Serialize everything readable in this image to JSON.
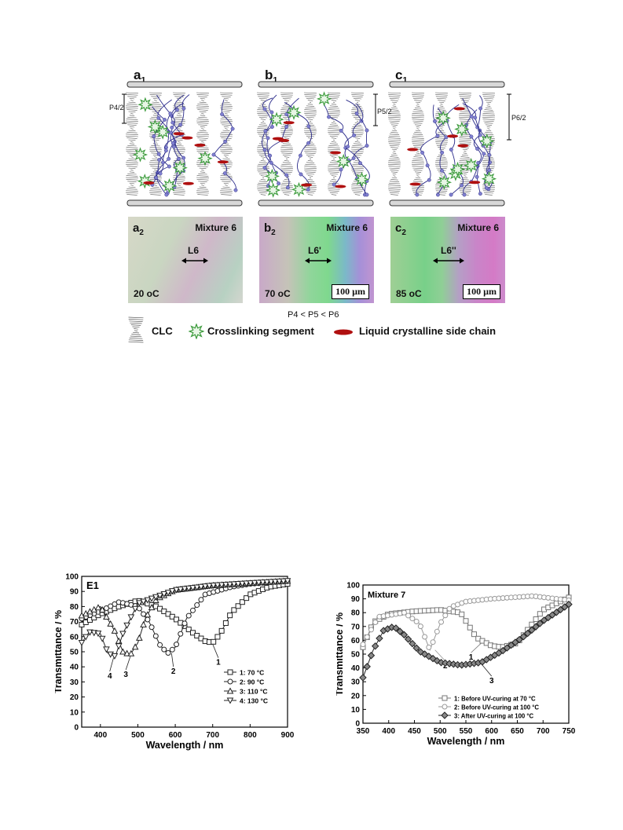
{
  "figure1": {
    "panels": [
      {
        "letter": "a",
        "sub": "1",
        "pitch": "P4/2"
      },
      {
        "letter": "b",
        "sub": "1",
        "pitch": "P5/2"
      },
      {
        "letter": "c",
        "sub": "1",
        "pitch": "P6/2"
      }
    ],
    "micrographs": [
      {
        "letter": "a",
        "sub": "2",
        "mixture": "Mixture 6",
        "period": "L6",
        "temp": "20 oC",
        "scale": ""
      },
      {
        "letter": "b",
        "sub": "2",
        "mixture": "Mixture 6",
        "period": "L6'",
        "temp": "70 oC",
        "scale": "100 µm"
      },
      {
        "letter": "c",
        "sub": "2",
        "mixture": "Mixture 6",
        "period": "L6''",
        "temp": "85 oC",
        "scale": "100 µm"
      }
    ],
    "pitch_relation": "P4 < P5 < P6",
    "legend": {
      "clc": "CLC",
      "crosslink": "Crosslinking segment",
      "sidechain": "Liquid crystalline side chain"
    },
    "colors": {
      "crosslink": "#3a9a3a",
      "sidechain": "#b01010",
      "chain": "#2b2b8a",
      "node": "#7f7fd0"
    }
  },
  "chart_data": [
    {
      "type": "line",
      "label": "E1",
      "xlabel": "Wavelength / nm",
      "ylabel": "Transmittance / %",
      "xlim": [
        350,
        900
      ],
      "ylim": [
        0,
        100
      ],
      "xticks": [
        400,
        500,
        600,
        700,
        800,
        900
      ],
      "yticks": [
        0,
        10,
        20,
        30,
        40,
        50,
        60,
        70,
        80,
        90,
        100
      ],
      "legend": "bottom-right",
      "series": [
        {
          "name": "1: 70 °C",
          "marker": "square",
          "callout": "1",
          "x": [
            350,
            400,
            450,
            500,
            550,
            600,
            650,
            680,
            700,
            720,
            750,
            800,
            850,
            900
          ],
          "y": [
            68,
            75,
            80,
            84,
            80,
            72,
            62,
            57,
            56,
            62,
            76,
            88,
            93,
            95
          ]
        },
        {
          "name": "2: 90 °C",
          "marker": "circle",
          "callout": "2",
          "x": [
            350,
            400,
            450,
            500,
            530,
            560,
            580,
            600,
            630,
            680,
            750,
            800,
            900
          ],
          "y": [
            72,
            77,
            83,
            80,
            70,
            54,
            49,
            53,
            72,
            88,
            93,
            95,
            97
          ]
        },
        {
          "name": "3: 110 °C",
          "marker": "triangle-up",
          "callout": "3",
          "x": [
            350,
            400,
            440,
            460,
            480,
            500,
            520,
            550,
            600,
            700,
            900
          ],
          "y": [
            74,
            80,
            63,
            50,
            48,
            56,
            72,
            85,
            91,
            94,
            97
          ]
        },
        {
          "name": "4: 130 °C",
          "marker": "triangle-down",
          "callout": "4",
          "x": [
            350,
            370,
            400,
            420,
            440,
            460,
            500,
            600,
            700,
            900
          ],
          "y": [
            56,
            63,
            62,
            49,
            47,
            62,
            82,
            91,
            94,
            97
          ]
        }
      ]
    },
    {
      "type": "line",
      "label": "Mixture 7",
      "xlabel": "Wavelength / nm",
      "ylabel": "Transmittance / %",
      "xlim": [
        350,
        750
      ],
      "ylim": [
        0,
        100
      ],
      "xticks": [
        350,
        400,
        450,
        500,
        550,
        600,
        650,
        700,
        750
      ],
      "yticks": [
        0,
        10,
        20,
        30,
        40,
        50,
        60,
        70,
        80,
        90,
        100
      ],
      "legend": "bottom-right",
      "series": [
        {
          "name": "1: Before UV-curing at 70 °C",
          "marker": "square",
          "callout": "1",
          "x": [
            350,
            370,
            400,
            450,
            500,
            540,
            570,
            600,
            620,
            650,
            700,
            750
          ],
          "y": [
            55,
            73,
            79,
            81,
            82,
            80,
            62,
            56,
            55,
            58,
            82,
            91
          ]
        },
        {
          "name": "2: Before UV-curing at 100 °C",
          "marker": "circle",
          "callout": "2",
          "x": [
            350,
            380,
            400,
            430,
            460,
            480,
            500,
            520,
            550,
            600,
            680,
            750
          ],
          "y": [
            57,
            77,
            78,
            80,
            72,
            53,
            72,
            84,
            88,
            90,
            92,
            89
          ]
        },
        {
          "name": "3: After UV-curing at 100 °C",
          "marker": "diamond",
          "callout": "3",
          "x": [
            350,
            370,
            390,
            410,
            430,
            460,
            500,
            540,
            580,
            620,
            660,
            700,
            750
          ],
          "y": [
            33,
            53,
            67,
            70,
            64,
            52,
            44,
            42,
            44,
            52,
            62,
            74,
            86
          ]
        }
      ]
    }
  ]
}
